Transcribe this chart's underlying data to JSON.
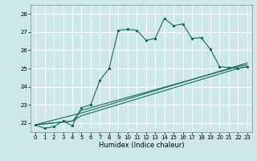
{
  "xlabel": "Humidex (Indice chaleur)",
  "bg_color": "#cce8e8",
  "grid_color": "#ffffff",
  "line_color": "#1a6b5a",
  "xlim": [
    -0.5,
    23.5
  ],
  "ylim": [
    21.5,
    28.5
  ],
  "yticks": [
    22,
    23,
    24,
    25,
    26,
    27,
    28
  ],
  "xticks": [
    0,
    1,
    2,
    3,
    4,
    5,
    6,
    7,
    8,
    9,
    10,
    11,
    12,
    13,
    14,
    15,
    16,
    17,
    18,
    19,
    20,
    21,
    22,
    23
  ],
  "series1_x": [
    0,
    1,
    2,
    3,
    4,
    5,
    6,
    7,
    8,
    9,
    10,
    11,
    12,
    13,
    14,
    15,
    16,
    17,
    18,
    19,
    20,
    21,
    22,
    23
  ],
  "series1_y": [
    21.9,
    21.7,
    21.8,
    22.1,
    21.85,
    22.85,
    23.0,
    24.35,
    25.0,
    27.1,
    27.15,
    27.1,
    26.55,
    26.65,
    27.75,
    27.35,
    27.45,
    26.65,
    26.7,
    26.05,
    25.1,
    25.05,
    25.0,
    25.1
  ],
  "series2_x": [
    0,
    4,
    5,
    22,
    23
  ],
  "series2_y": [
    21.9,
    22.1,
    22.7,
    25.1,
    25.2
  ],
  "series3_x": [
    0,
    4,
    5,
    22,
    23
  ],
  "series3_y": [
    21.9,
    22.1,
    22.4,
    25.0,
    25.1
  ],
  "series4_x": [
    0,
    5,
    22,
    23
  ],
  "series4_y": [
    21.9,
    22.55,
    25.15,
    25.3
  ]
}
